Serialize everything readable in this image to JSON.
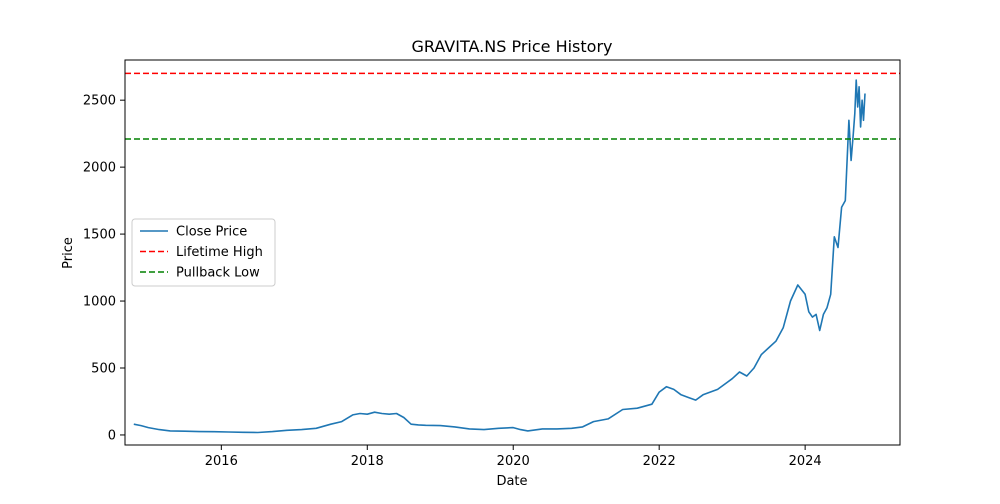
{
  "chart_data": {
    "type": "line",
    "title": "GRAVITA.NS Price History",
    "xlabel": "Date",
    "ylabel": "Price",
    "xlim": [
      2014.68,
      2025.3
    ],
    "ylim": [
      -75,
      2800
    ],
    "x_ticks": [
      {
        "value": 2016,
        "label": "2016"
      },
      {
        "value": 2018,
        "label": "2018"
      },
      {
        "value": 2020,
        "label": "2020"
      },
      {
        "value": 2022,
        "label": "2022"
      },
      {
        "value": 2024,
        "label": "2024"
      }
    ],
    "y_ticks": [
      {
        "value": 0,
        "label": "0"
      },
      {
        "value": 500,
        "label": "500"
      },
      {
        "value": 1000,
        "label": "1000"
      },
      {
        "value": 1500,
        "label": "1500"
      },
      {
        "value": 2000,
        "label": "2000"
      },
      {
        "value": 2500,
        "label": "2500"
      }
    ],
    "grid": false,
    "legend": "center-left",
    "series": [
      {
        "name": "Close Price",
        "color": "#1f77b4",
        "style": "solid",
        "x": [
          2014.8,
          2014.9,
          2015.0,
          2015.15,
          2015.3,
          2015.5,
          2015.7,
          2015.9,
          2016.1,
          2016.3,
          2016.5,
          2016.7,
          2016.9,
          2017.1,
          2017.3,
          2017.5,
          2017.65,
          2017.8,
          2017.9,
          2018.0,
          2018.1,
          2018.2,
          2018.3,
          2018.4,
          2018.5,
          2018.6,
          2018.7,
          2018.8,
          2019.0,
          2019.2,
          2019.4,
          2019.6,
          2019.8,
          2020.0,
          2020.1,
          2020.2,
          2020.4,
          2020.6,
          2020.8,
          2020.95,
          2021.1,
          2021.3,
          2021.5,
          2021.7,
          2021.9,
          2022.0,
          2022.1,
          2022.2,
          2022.3,
          2022.4,
          2022.5,
          2022.6,
          2022.8,
          2023.0,
          2023.1,
          2023.2,
          2023.3,
          2023.4,
          2023.5,
          2023.6,
          2023.7,
          2023.8,
          2023.9,
          2024.0,
          2024.05,
          2024.1,
          2024.15,
          2024.2,
          2024.25,
          2024.3,
          2024.35,
          2024.4,
          2024.45,
          2024.5,
          2024.55,
          2024.6,
          2024.63,
          2024.66,
          2024.68,
          2024.7,
          2024.72,
          2024.74,
          2024.76,
          2024.78,
          2024.8,
          2024.82
        ],
        "y": [
          80,
          70,
          55,
          40,
          30,
          28,
          25,
          24,
          22,
          20,
          18,
          25,
          35,
          40,
          50,
          80,
          100,
          150,
          160,
          155,
          170,
          160,
          155,
          160,
          130,
          80,
          75,
          72,
          70,
          60,
          45,
          40,
          50,
          55,
          40,
          30,
          45,
          45,
          50,
          60,
          100,
          120,
          190,
          200,
          230,
          320,
          360,
          340,
          300,
          280,
          260,
          300,
          340,
          420,
          470,
          440,
          500,
          600,
          650,
          700,
          800,
          1000,
          1120,
          1050,
          920,
          880,
          900,
          780,
          900,
          950,
          1050,
          1480,
          1400,
          1700,
          1750,
          2350,
          2050,
          2250,
          2400,
          2650,
          2450,
          2600,
          2300,
          2500,
          2350,
          2550
        ]
      },
      {
        "name": "Lifetime High",
        "color": "#ff0000",
        "style": "dashed",
        "value": 2700
      },
      {
        "name": "Pullback Low",
        "color": "#008000",
        "style": "dashed",
        "value": 2210
      }
    ]
  }
}
